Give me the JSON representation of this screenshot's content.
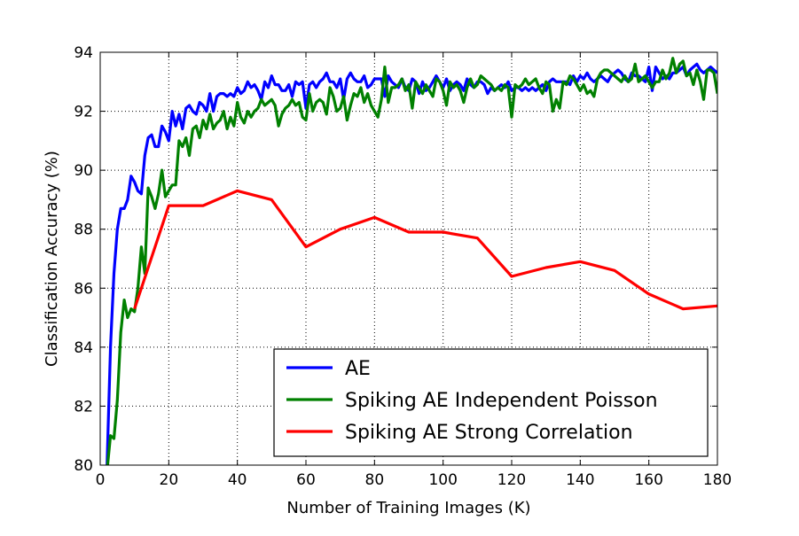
{
  "chart_data": {
    "type": "line",
    "title": "",
    "xlabel": "Number of Training Images (K)",
    "ylabel": "Classification Accuracy (%)",
    "xlim": [
      0,
      180
    ],
    "ylim": [
      80,
      94
    ],
    "xticks": [
      0,
      20,
      40,
      60,
      80,
      100,
      120,
      140,
      160,
      180
    ],
    "yticks": [
      80,
      82,
      84,
      86,
      88,
      90,
      92,
      94
    ],
    "grid": true,
    "legend_position": "lower-right",
    "series": [
      {
        "name": "AE",
        "color": "#0000ff",
        "x": [
          1,
          2,
          3,
          4,
          5,
          6,
          7,
          8,
          9,
          10,
          11,
          12,
          13,
          14,
          15,
          16,
          17,
          18,
          19,
          20,
          21,
          22,
          23,
          24,
          25,
          26,
          27,
          28,
          29,
          30,
          31,
          32,
          33,
          34,
          35,
          36,
          37,
          38,
          39,
          40,
          41,
          42,
          43,
          44,
          45,
          46,
          47,
          48,
          49,
          50,
          51,
          52,
          53,
          54,
          55,
          56,
          57,
          58,
          59,
          60,
          61,
          62,
          63,
          64,
          65,
          66,
          67,
          68,
          69,
          70,
          71,
          72,
          73,
          74,
          75,
          76,
          77,
          78,
          79,
          80,
          81,
          82,
          83,
          84,
          85,
          86,
          87,
          88,
          89,
          90,
          91,
          92,
          93,
          94,
          95,
          96,
          97,
          98,
          99,
          100,
          101,
          102,
          103,
          104,
          105,
          106,
          107,
          108,
          109,
          110,
          111,
          112,
          113,
          114,
          115,
          116,
          117,
          118,
          119,
          120,
          121,
          122,
          123,
          124,
          125,
          126,
          127,
          128,
          129,
          130,
          131,
          132,
          133,
          134,
          135,
          136,
          137,
          138,
          139,
          140,
          141,
          142,
          143,
          144,
          145,
          146,
          147,
          148,
          149,
          150,
          151,
          152,
          153,
          154,
          155,
          156,
          157,
          158,
          159,
          160,
          161,
          162,
          163,
          164,
          165,
          166,
          167,
          168,
          169,
          170,
          171,
          172,
          173,
          174,
          175,
          176,
          177,
          178,
          179,
          180
        ],
        "y": [
          79.5,
          80.0,
          84.0,
          86.5,
          88.0,
          88.7,
          88.7,
          89.0,
          89.8,
          89.6,
          89.3,
          89.2,
          90.5,
          91.1,
          91.2,
          90.8,
          90.8,
          91.5,
          91.3,
          91.0,
          92.0,
          91.5,
          91.9,
          91.4,
          92.1,
          92.2,
          92.0,
          91.9,
          92.3,
          92.2,
          92.0,
          92.6,
          92.0,
          92.5,
          92.6,
          92.6,
          92.5,
          92.6,
          92.5,
          92.8,
          92.6,
          92.7,
          93.0,
          92.8,
          92.9,
          92.7,
          92.4,
          93.0,
          92.8,
          93.2,
          92.9,
          92.9,
          92.7,
          92.7,
          92.9,
          92.5,
          93.0,
          92.9,
          93.0,
          92.1,
          92.9,
          93.0,
          92.8,
          93.0,
          93.1,
          93.3,
          93.0,
          93.0,
          92.8,
          93.1,
          92.4,
          93.1,
          93.3,
          93.1,
          93.0,
          93.0,
          93.2,
          92.8,
          92.9,
          93.1,
          93.1,
          93.1,
          92.5,
          93.2,
          93.0,
          92.9,
          92.8,
          93.1,
          92.8,
          92.7,
          93.1,
          93.0,
          92.6,
          93.0,
          92.7,
          92.8,
          93.0,
          93.2,
          93.0,
          92.8,
          93.1,
          92.7,
          92.9,
          93.0,
          92.9,
          92.7,
          93.1,
          92.9,
          92.8,
          93.0,
          93.0,
          92.9,
          92.6,
          92.8,
          92.7,
          92.8,
          92.9,
          92.8,
          93.0,
          92.7,
          92.8,
          92.8,
          92.7,
          92.8,
          92.7,
          92.8,
          92.7,
          92.8,
          92.9,
          92.7,
          93.0,
          93.1,
          93.0,
          93.0,
          93.0,
          93.0,
          92.9,
          93.2,
          93.0,
          93.2,
          93.1,
          93.3,
          93.1,
          93.0,
          93.1,
          93.2,
          93.1,
          93.0,
          93.2,
          93.3,
          93.4,
          93.3,
          93.1,
          93.0,
          93.3,
          93.2,
          93.2,
          93.1,
          93.0,
          93.5,
          92.7,
          93.5,
          93.3,
          93.1,
          93.2,
          93.1,
          93.3,
          93.3,
          93.4,
          93.5,
          93.2,
          93.4,
          93.5,
          93.6,
          93.4,
          93.3,
          93.4,
          93.5,
          93.4,
          93.3
        ]
      },
      {
        "name": "Spiking AE Independent Poisson",
        "color": "#008000",
        "x": [
          1,
          2,
          3,
          4,
          5,
          6,
          7,
          8,
          9,
          10,
          11,
          12,
          13,
          14,
          15,
          16,
          17,
          18,
          19,
          20,
          21,
          22,
          23,
          24,
          25,
          26,
          27,
          28,
          29,
          30,
          31,
          32,
          33,
          34,
          35,
          36,
          37,
          38,
          39,
          40,
          41,
          42,
          43,
          44,
          45,
          46,
          47,
          48,
          49,
          50,
          51,
          52,
          53,
          54,
          55,
          56,
          57,
          58,
          59,
          60,
          61,
          62,
          63,
          64,
          65,
          66,
          67,
          68,
          69,
          70,
          71,
          72,
          73,
          74,
          75,
          76,
          77,
          78,
          79,
          80,
          81,
          82,
          83,
          84,
          85,
          86,
          87,
          88,
          89,
          90,
          91,
          92,
          93,
          94,
          95,
          96,
          97,
          98,
          99,
          100,
          101,
          102,
          103,
          104,
          105,
          106,
          107,
          108,
          109,
          110,
          111,
          112,
          113,
          114,
          115,
          116,
          117,
          118,
          119,
          120,
          121,
          122,
          123,
          124,
          125,
          126,
          127,
          128,
          129,
          130,
          131,
          132,
          133,
          134,
          135,
          136,
          137,
          138,
          139,
          140,
          141,
          142,
          143,
          144,
          145,
          146,
          147,
          148,
          149,
          150,
          151,
          152,
          153,
          154,
          155,
          156,
          157,
          158,
          159,
          160,
          161,
          162,
          163,
          164,
          165,
          166,
          167,
          168,
          169,
          170,
          171,
          172,
          173,
          174,
          175,
          176,
          177,
          178,
          179,
          180
        ],
        "y": [
          79.2,
          79.8,
          81.0,
          80.9,
          82.2,
          84.5,
          85.6,
          85.0,
          85.3,
          85.2,
          86.0,
          87.4,
          86.5,
          89.4,
          89.1,
          88.7,
          89.2,
          90.0,
          89.1,
          89.3,
          89.5,
          89.5,
          91.0,
          90.8,
          91.1,
          90.5,
          91.4,
          91.5,
          91.1,
          91.7,
          91.4,
          91.9,
          91.4,
          91.6,
          91.7,
          92.0,
          91.4,
          91.8,
          91.5,
          92.3,
          91.8,
          91.6,
          92.0,
          91.8,
          92.0,
          92.1,
          92.4,
          92.2,
          92.3,
          92.4,
          92.2,
          91.5,
          91.9,
          92.1,
          92.2,
          92.4,
          92.2,
          92.3,
          91.8,
          91.7,
          92.6,
          92.0,
          92.3,
          92.4,
          92.3,
          91.9,
          92.8,
          92.5,
          92.0,
          92.1,
          92.5,
          91.7,
          92.2,
          92.6,
          92.5,
          92.8,
          92.3,
          92.6,
          92.2,
          92.0,
          91.8,
          92.4,
          93.5,
          92.3,
          92.8,
          92.8,
          92.9,
          93.1,
          92.7,
          92.9,
          92.1,
          93.0,
          92.8,
          92.6,
          92.9,
          92.7,
          92.5,
          93.1,
          93.0,
          92.7,
          92.2,
          93.0,
          92.8,
          92.9,
          92.7,
          92.3,
          92.8,
          93.1,
          92.8,
          92.9,
          93.2,
          93.1,
          93.0,
          92.9,
          92.7,
          92.8,
          92.7,
          92.9,
          92.8,
          91.8,
          92.9,
          92.8,
          92.9,
          93.1,
          92.9,
          93.0,
          93.1,
          92.8,
          92.6,
          93.0,
          92.9,
          92.0,
          92.4,
          92.1,
          93.0,
          92.9,
          93.2,
          93.1,
          92.9,
          92.7,
          92.9,
          92.6,
          92.7,
          92.5,
          93.1,
          93.3,
          93.4,
          93.4,
          93.3,
          93.2,
          93.1,
          93.0,
          93.2,
          93.0,
          93.1,
          93.6,
          93.0,
          93.1,
          93.2,
          93.0,
          92.8,
          93.0,
          93.0,
          93.4,
          93.1,
          93.3,
          93.8,
          93.3,
          93.6,
          93.7,
          93.2,
          93.3,
          92.9,
          93.4,
          93.0,
          92.4,
          93.4,
          93.4,
          93.3,
          92.6
        ]
      },
      {
        "name": "Spiking AE Strong Correlation",
        "color": "#ff0000",
        "x": [
          10,
          20,
          30,
          40,
          50,
          60,
          70,
          80,
          90,
          100,
          110,
          120,
          130,
          140,
          150,
          160,
          170,
          180
        ],
        "y": [
          85.3,
          88.8,
          88.8,
          89.3,
          89.0,
          87.4,
          88.0,
          88.4,
          87.9,
          87.9,
          87.7,
          86.4,
          86.7,
          86.9,
          86.6,
          85.8,
          85.3,
          85.4
        ]
      }
    ]
  }
}
